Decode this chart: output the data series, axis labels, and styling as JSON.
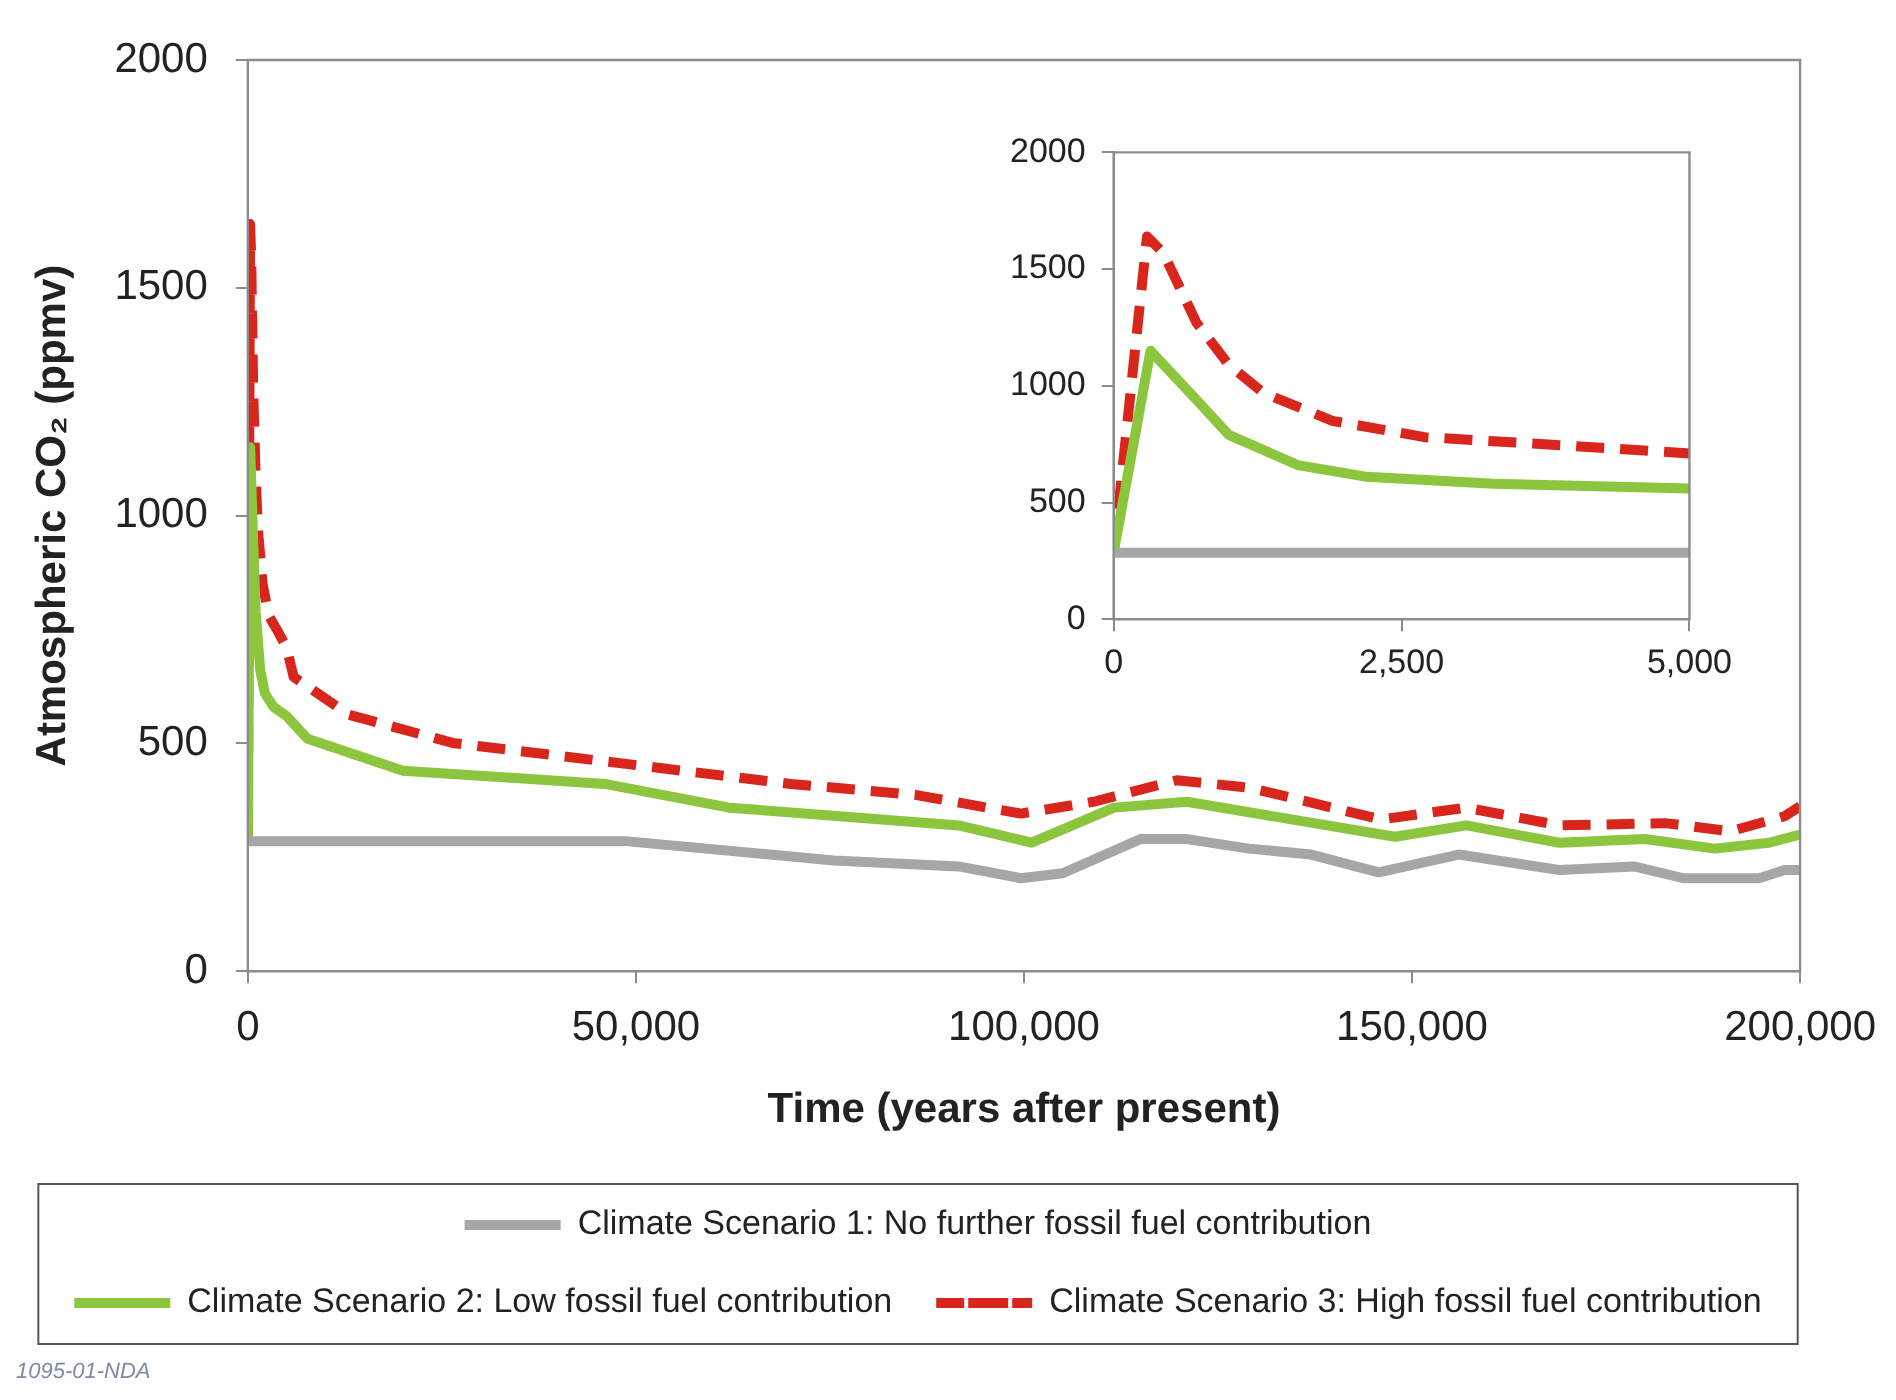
{
  "chart_data": [
    {
      "type": "line",
      "xlabel": "Time (years after present)",
      "ylabel": "Atmospheric CO₂ (ppmv)",
      "xlim": [
        0,
        200000
      ],
      "xticks": [
        0,
        {
          "value": 50000,
          "label": "50,000"
        },
        {
          "value": 100000,
          "label": "100,000"
        },
        {
          "value": 150000,
          "label": "150,000"
        },
        {
          "value": 200000,
          "label": "200,000"
        }
      ],
      "ylim": [
        0,
        2000
      ],
      "yticks": [
        0,
        500,
        1000,
        1500,
        2000
      ],
      "grid": false,
      "legend": "bottom",
      "marker": "none",
      "annotations": [
        "1095-01-NDA"
      ],
      "series": [
        {
          "name": "Climate Scenario 1: No further fossil fuel contribution",
          "color": "#a6a6a6",
          "line_style": "solid",
          "x": [
            0,
            49000,
            75500,
            91600,
            99600,
            105000,
            115000,
            121000,
            129000,
            137000,
            145700,
            156000,
            169000,
            178600,
            185000,
            194700,
            198000,
            200000
          ],
          "values": [
            285,
            285,
            243,
            230,
            204,
            215,
            290,
            290,
            269,
            256,
            217,
            256,
            222,
            230,
            204,
            204,
            222,
            222
          ]
        },
        {
          "name": "Climate Scenario 2: Low fossil fuel contribution",
          "color": "#8cc63f",
          "line_style": "solid",
          "x": [
            0,
            300,
            700,
            1000,
            1600,
            2200,
            3300,
            5000,
            7700,
            20000,
            46000,
            62000,
            91600,
            101000,
            111600,
            121000,
            147800,
            157000,
            169000,
            180000,
            189000,
            196000,
            200000
          ],
          "values": [
            285,
            1150,
            940,
            790,
            660,
            610,
            580,
            560,
            510,
            440,
            411,
            359,
            320,
            282,
            359,
            372,
            295,
            320,
            282,
            290,
            269,
            282,
            300
          ]
        },
        {
          "name": "Climate Scenario 3: High fossil fuel contribution",
          "color": "#d9261c",
          "line_style": "dashed",
          "x": [
            0,
            290,
            430,
            700,
            1000,
            1300,
            1900,
            2700,
            3900,
            5000,
            5900,
            13000,
            26400,
            48700,
            70000,
            86000,
            99600,
            109000,
            119700,
            129000,
            146000,
            157000,
            169000,
            182600,
            191000,
            198000,
            200000
          ],
          "values": [
            285,
            1640,
            1570,
            1270,
            1090,
            970,
            850,
            780,
            745,
            710,
            646,
            563,
            501,
            455,
            411,
            387,
            346,
            372,
            419,
            403,
            333,
            359,
            320,
            325,
            307,
            340,
            362
          ]
        }
      ]
    },
    {
      "type": "line",
      "xlim": [
        0,
        5000
      ],
      "xticks": [
        0,
        {
          "value": 2500,
          "label": "2,500"
        },
        {
          "value": 5000,
          "label": "5,000"
        }
      ],
      "ylim": [
        0,
        2000
      ],
      "yticks": [
        0,
        500,
        1000,
        1500,
        2000
      ],
      "grid": false,
      "legend": false,
      "marker": "none",
      "series": [
        {
          "color": "#a6a6a6",
          "line_style": "solid",
          "x": [
            0,
            5000
          ],
          "values": [
            285,
            285
          ]
        },
        {
          "color": "#8cc63f",
          "line_style": "solid",
          "x": [
            0,
            320,
            720,
            1000,
            1600,
            2200,
            3300,
            5000
          ],
          "values": [
            285,
            1150,
            940,
            790,
            660,
            610,
            580,
            560
          ]
        },
        {
          "color": "#d9261c",
          "line_style": "dashed",
          "x": [
            0,
            290,
            430,
            720,
            1000,
            1300,
            1900,
            2700,
            3900,
            5000
          ],
          "values": [
            285,
            1640,
            1570,
            1270,
            1090,
            970,
            850,
            780,
            745,
            710
          ]
        }
      ]
    }
  ]
}
